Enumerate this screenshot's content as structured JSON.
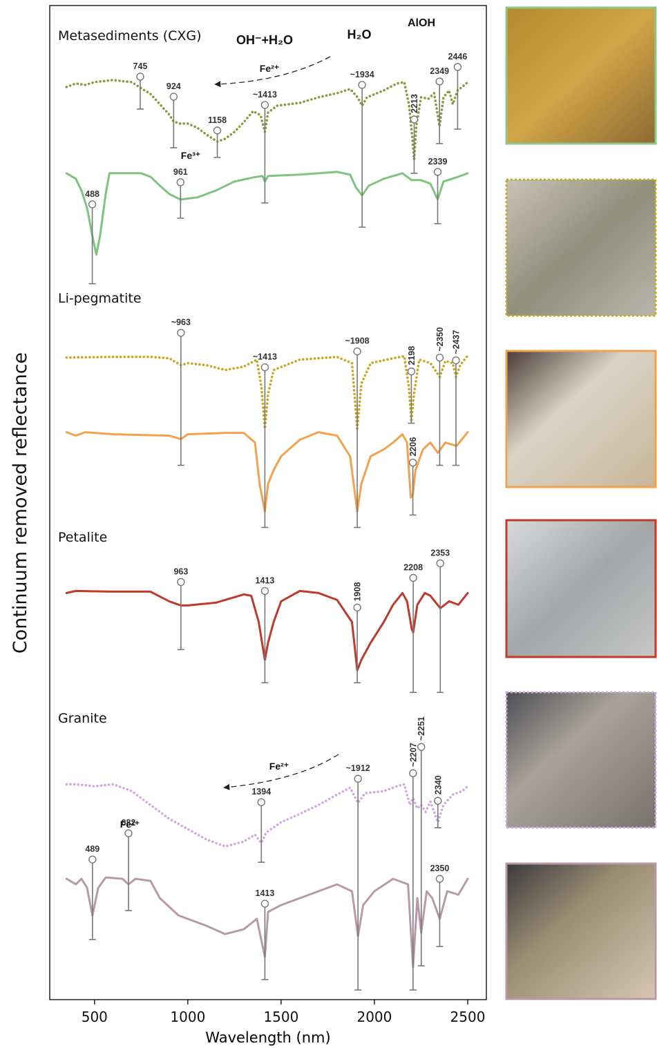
{
  "chart_data": {
    "type": "line",
    "xlabel": "Wavelength (nm)",
    "ylabel": "Continuum removed reflectance",
    "xlim": [
      260,
      2600
    ],
    "xticks": [
      500,
      1000,
      1500,
      2000,
      2500
    ],
    "ylim": [
      0,
      1440
    ],
    "series": [
      {
        "color": "#8a9a3c",
        "style": "dotted",
        "x": [
          350,
          400,
          450,
          500,
          600,
          700,
          745,
          800,
          850,
          900,
          924,
          960,
          1000,
          1050,
          1100,
          1158,
          1200,
          1250,
          1300,
          1350,
          1390,
          1413,
          1430,
          1480,
          1600,
          1700,
          1800,
          1870,
          1910,
          1934,
          1960,
          2050,
          2120,
          2160,
          2185,
          2200,
          2213,
          2225,
          2250,
          2290,
          2320,
          2349,
          2370,
          2400,
          2420,
          2446,
          2475,
          2500
        ],
        "values": [
          1322,
          1327,
          1325,
          1329,
          1332,
          1329,
          1321,
          1312,
          1297,
          1282,
          1272,
          1269,
          1269,
          1263,
          1253,
          1243,
          1247,
          1257,
          1271,
          1287,
          1281,
          1257,
          1285,
          1295,
          1299,
          1307,
          1313,
          1319,
          1307,
          1295,
          1307,
          1317,
          1327,
          1329,
          1297,
          1257,
          1217,
          1267,
          1307,
          1305,
          1313,
          1265,
          1307,
          1317,
          1297,
          1317,
          1323,
          1329
        ]
      },
      {
        "color": "#7dc47d",
        "style": "solid",
        "x": [
          350,
          400,
          430,
          460,
          488,
          510,
          530,
          560,
          580,
          700,
          750,
          800,
          850,
          900,
          961,
          1050,
          1150,
          1250,
          1350,
          1400,
          1413,
          1430,
          1600,
          1800,
          1870,
          1900,
          1934,
          1970,
          2050,
          2150,
          2200,
          2250,
          2300,
          2339,
          2370,
          2450,
          2500
        ],
        "values": [
          1197,
          1189,
          1172,
          1147,
          1107,
          1079,
          1107,
          1167,
          1197,
          1197,
          1197,
          1192,
          1179,
          1167,
          1159,
          1162,
          1172,
          1185,
          1191,
          1193,
          1185,
          1193,
          1195,
          1199,
          1195,
          1177,
          1165,
          1179,
          1189,
          1197,
          1187,
          1187,
          1182,
          1159,
          1185,
          1192,
          1197
        ]
      },
      {
        "color": "#c8a820",
        "style": "dotted",
        "x": [
          350,
          600,
          800,
          900,
          963,
          1000,
          1100,
          1200,
          1300,
          1370,
          1395,
          1413,
          1430,
          1460,
          1600,
          1800,
          1880,
          1908,
          1930,
          1980,
          2100,
          2160,
          2185,
          2198,
          2212,
          2240,
          2300,
          2350,
          2380,
          2420,
          2437,
          2460,
          2500
        ],
        "values": [
          930,
          931,
          931,
          929,
          919,
          922,
          919,
          912,
          917,
          927,
          887,
          827,
          877,
          912,
          927,
          931,
          922,
          827,
          892,
          922,
          929,
          932,
          887,
          837,
          877,
          927,
          922,
          902,
          925,
          922,
          902,
          919,
          933
        ]
      },
      {
        "color": "#f4a14d",
        "style": "solid",
        "x": [
          350,
          400,
          450,
          600,
          900,
          963,
          1000,
          1200,
          1300,
          1360,
          1385,
          1413,
          1430,
          1460,
          1500,
          1600,
          1700,
          1800,
          1870,
          1908,
          1930,
          1980,
          2050,
          2100,
          2150,
          2175,
          2195,
          2206,
          2220,
          2260,
          2300,
          2340,
          2380,
          2440,
          2500
        ],
        "values": [
          822,
          817,
          822,
          819,
          817,
          812,
          819,
          821,
          821,
          807,
          747,
          707,
          747,
          767,
          787,
          811,
          822,
          817,
          787,
          707,
          747,
          787,
          797,
          807,
          819,
          807,
          727,
          732,
          767,
          797,
          807,
          792,
          807,
          802,
          822
        ]
      },
      {
        "color": "#c0392b",
        "style": "solid",
        "x": [
          350,
          400,
          600,
          800,
          900,
          963,
          1000,
          1150,
          1300,
          1340,
          1380,
          1413,
          1430,
          1460,
          1500,
          1600,
          1700,
          1800,
          1880,
          1908,
          1930,
          1980,
          2050,
          2100,
          2150,
          2175,
          2200,
          2208,
          2230,
          2270,
          2300,
          2353,
          2400,
          2450,
          2500
        ],
        "values": [
          589,
          592,
          591,
          591,
          577,
          571,
          571,
          575,
          587,
          585,
          547,
          492,
          517,
          547,
          577,
          592,
          589,
          579,
          547,
          477,
          492,
          517,
          547,
          572,
          589,
          577,
          537,
          532,
          572,
          589,
          585,
          567,
          577,
          572,
          589
        ]
      },
      {
        "color": "#d4a8e0",
        "style": "dotted",
        "x": [
          350,
          400,
          500,
          600,
          700,
          800,
          900,
          1000,
          1100,
          1200,
          1300,
          1360,
          1394,
          1420,
          1500,
          1600,
          1700,
          1800,
          1870,
          1912,
          1950,
          2050,
          2120,
          2160,
          2190,
          2207,
          2230,
          2251,
          2275,
          2300,
          2340,
          2370,
          2420,
          2470,
          2500
        ],
        "values": [
          312,
          312,
          309,
          312,
          302,
          282,
          262,
          247,
          232,
          222,
          229,
          239,
          227,
          242,
          257,
          269,
          282,
          297,
          307,
          285,
          299,
          302,
          309,
          312,
          282,
          292,
          277,
          282,
          272,
          287,
          257,
          282,
          297,
          302,
          309
        ]
      },
      {
        "color": "#b899a8",
        "style": "solid",
        "x": [
          350,
          400,
          430,
          460,
          489,
          520,
          560,
          650,
          682,
          720,
          800,
          850,
          950,
          1100,
          1200,
          1300,
          1370,
          1413,
          1430,
          1500,
          1600,
          1700,
          1800,
          1880,
          1912,
          1940,
          2000,
          2100,
          2180,
          2207,
          2230,
          2251,
          2280,
          2310,
          2350,
          2390,
          2450,
          2500
        ],
        "values": [
          175,
          167,
          175,
          162,
          122,
          162,
          177,
          175,
          167,
          175,
          172,
          147,
          122,
          107,
          95,
          102,
          117,
          62,
          127,
          137,
          147,
          157,
          167,
          157,
          92,
          137,
          157,
          175,
          167,
          47,
          147,
          97,
          157,
          147,
          117,
          157,
          152,
          175
        ]
      }
    ],
    "markers": [
      {
        "label": "745",
        "x": 745,
        "y": [
          1290,
          1337
        ]
      },
      {
        "label": "924",
        "x": 924,
        "y": [
          1234,
          1308
        ]
      },
      {
        "label": "1158",
        "x": 1158,
        "y": [
          1220,
          1259
        ]
      },
      {
        "label": "~1413",
        "x": 1413,
        "y": [
          1154,
          1296
        ]
      },
      {
        "label": "~1934",
        "x": 1934,
        "y": [
          1119,
          1325
        ]
      },
      {
        "label": "2213",
        "x": 2213,
        "y": [
          1197,
          1275
        ],
        "vertical": true
      },
      {
        "label": "2349",
        "x": 2349,
        "y": [
          1240,
          1330
        ]
      },
      {
        "label": "2446",
        "x": 2446,
        "y": [
          1261,
          1351
        ]
      },
      {
        "label": "488",
        "x": 488,
        "y": [
          1037,
          1152
        ]
      },
      {
        "label": "961",
        "x": 961,
        "y": [
          1132,
          1184
        ]
      },
      {
        "label": "2339",
        "x": 2339,
        "y": [
          1124,
          1199
        ]
      },
      {
        "label": "~963",
        "x": 963,
        "y": [
          774,
          966
        ]
      },
      {
        "label": "~1413",
        "x": 1413,
        "y": [
          684,
          916
        ]
      },
      {
        "label": "~1908",
        "x": 1908,
        "y": [
          684,
          939
        ]
      },
      {
        "label": "2198",
        "x": 2198,
        "y": [
          835,
          910
        ],
        "vertical": true
      },
      {
        "label": "~2350",
        "x": 2350,
        "y": [
          774,
          930
        ],
        "vertical": true
      },
      {
        "label": "~2437",
        "x": 2437,
        "y": [
          774,
          926
        ],
        "vertical": true
      },
      {
        "label": "2206",
        "x": 2206,
        "y": [
          702,
          778
        ],
        "vertical": true
      },
      {
        "label": "963",
        "x": 963,
        "y": [
          507,
          605
        ]
      },
      {
        "label": "1413",
        "x": 1413,
        "y": [
          459,
          592
        ]
      },
      {
        "label": "1908",
        "x": 1908,
        "y": [
          459,
          568
        ],
        "vertical": true
      },
      {
        "label": "2208",
        "x": 2208,
        "y": [
          445,
          611
        ]
      },
      {
        "label": "2353",
        "x": 2353,
        "y": [
          445,
          632
        ]
      },
      {
        "label": "~1912",
        "x": 1912,
        "y": [
          14,
          320
        ]
      },
      {
        "label": "~2207",
        "x": 2207,
        "y": [
          14,
          328
        ],
        "vertical": true
      },
      {
        "label": "~2251",
        "x": 2251,
        "y": [
          49,
          366
        ],
        "vertical": true
      },
      {
        "label": "2340",
        "x": 2340,
        "y": [
          249,
          288
        ],
        "vertical": true
      },
      {
        "label": "1394",
        "x": 1394,
        "y": [
          199,
          286
        ]
      },
      {
        "label": "489",
        "x": 489,
        "y": [
          87,
          203
        ]
      },
      {
        "label": "682",
        "x": 682,
        "y": [
          129,
          241
        ]
      },
      {
        "label": "1413",
        "x": 1413,
        "y": [
          29,
          139
        ]
      },
      {
        "label": "2350",
        "x": 2350,
        "y": [
          77,
          175
        ]
      }
    ],
    "groups": [
      "Metasediments (CXG)",
      "Li-pegmatite",
      "Petalite",
      "Granite"
    ],
    "annotations": [
      "OH⁻+H₂O",
      "H₂O",
      "AlOH",
      "Fe²⁺",
      "Fe³⁺",
      "Fe²⁺",
      "Fe²⁺"
    ]
  }
}
